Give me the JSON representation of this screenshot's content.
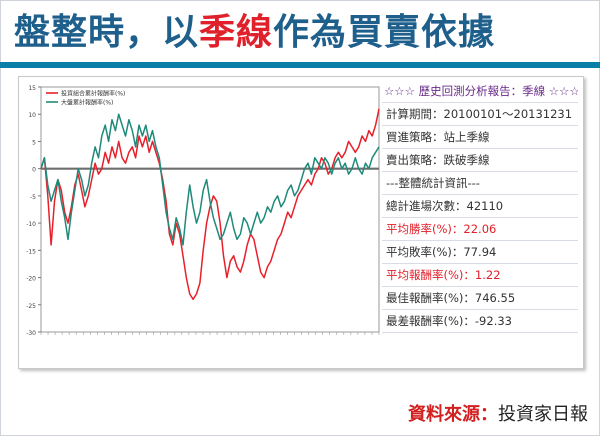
{
  "title": {
    "part1": "盤整時，以",
    "part2": "季線",
    "part3": "作為買賣依據"
  },
  "source": {
    "label": "資料來源：",
    "value": "投資家日報"
  },
  "report": {
    "heading": "☆☆☆ 歷史回測分析報告：季線 ☆☆☆",
    "rows": [
      {
        "key": "計算期間：",
        "value": "20100101～20131231",
        "highlight": false
      },
      {
        "key": "買進策略：",
        "value": "站上季線",
        "highlight": false
      },
      {
        "key": "賣出策略：",
        "value": "跌破季線",
        "highlight": false
      },
      {
        "key": "---整體統計資訊---",
        "value": "",
        "highlight": false
      },
      {
        "key": "總計進場次數：",
        "value": "42110",
        "highlight": false
      },
      {
        "key": "平均勝率(%)：",
        "value": "22.06",
        "highlight": true
      },
      {
        "key": "平均敗率(%)：",
        "value": "77.94",
        "highlight": false
      },
      {
        "key": "平均報酬率(%)：",
        "value": "1.22",
        "highlight": true
      },
      {
        "key": "最佳報酬率(%)：",
        "value": "746.55",
        "highlight": false
      },
      {
        "key": "最差報酬率(%)：",
        "value": "-92.33",
        "highlight": false
      }
    ]
  },
  "chart_data": {
    "type": "line",
    "ylim": [
      -30,
      15
    ],
    "yticks": [
      15,
      10,
      5,
      0,
      -5,
      -10,
      -15,
      -20,
      -25,
      -30
    ],
    "xlim": [
      0,
      100
    ],
    "zero_line": true,
    "legend_position": "top-left",
    "series": [
      {
        "name": "投資組合累計報酬率(%)",
        "color": "#e8202a",
        "points": [
          [
            0,
            0
          ],
          [
            1,
            2
          ],
          [
            2,
            -5
          ],
          [
            3,
            -14
          ],
          [
            4,
            -6
          ],
          [
            5,
            -2
          ],
          [
            6,
            -4
          ],
          [
            7,
            -8
          ],
          [
            8,
            -10
          ],
          [
            9,
            -7
          ],
          [
            10,
            -3
          ],
          [
            11,
            -1
          ],
          [
            12,
            -4
          ],
          [
            13,
            -7
          ],
          [
            14,
            -5
          ],
          [
            15,
            -2
          ],
          [
            16,
            1
          ],
          [
            17,
            -1
          ],
          [
            18,
            0
          ],
          [
            19,
            3
          ],
          [
            20,
            1
          ],
          [
            21,
            4
          ],
          [
            22,
            2
          ],
          [
            23,
            5
          ],
          [
            24,
            2
          ],
          [
            25,
            1
          ],
          [
            26,
            3
          ],
          [
            27,
            4
          ],
          [
            28,
            2
          ],
          [
            29,
            6
          ],
          [
            30,
            4
          ],
          [
            31,
            6
          ],
          [
            32,
            3
          ],
          [
            33,
            5
          ],
          [
            34,
            3
          ],
          [
            35,
            1
          ],
          [
            36,
            -2
          ],
          [
            37,
            -6
          ],
          [
            38,
            -12
          ],
          [
            39,
            -14
          ],
          [
            40,
            -10
          ],
          [
            41,
            -12
          ],
          [
            42,
            -16
          ],
          [
            43,
            -20
          ],
          [
            44,
            -23
          ],
          [
            45,
            -24
          ],
          [
            46,
            -23
          ],
          [
            47,
            -21
          ],
          [
            48,
            -15
          ],
          [
            49,
            -10
          ],
          [
            50,
            -7
          ],
          [
            51,
            -5
          ],
          [
            52,
            -6
          ],
          [
            53,
            -10
          ],
          [
            54,
            -16
          ],
          [
            55,
            -20
          ],
          [
            56,
            -17
          ],
          [
            57,
            -16
          ],
          [
            58,
            -18
          ],
          [
            59,
            -19
          ],
          [
            60,
            -17
          ],
          [
            61,
            -14
          ],
          [
            62,
            -12
          ],
          [
            63,
            -13
          ],
          [
            64,
            -16
          ],
          [
            65,
            -19
          ],
          [
            66,
            -20
          ],
          [
            67,
            -18
          ],
          [
            68,
            -17
          ],
          [
            69,
            -15
          ],
          [
            70,
            -13
          ],
          [
            71,
            -12
          ],
          [
            72,
            -10
          ],
          [
            73,
            -8
          ],
          [
            74,
            -9
          ],
          [
            75,
            -7
          ],
          [
            76,
            -5
          ],
          [
            77,
            -4
          ],
          [
            78,
            -3
          ],
          [
            79,
            -2
          ],
          [
            80,
            -3
          ],
          [
            81,
            -1
          ],
          [
            82,
            0
          ],
          [
            83,
            2
          ],
          [
            84,
            1
          ],
          [
            85,
            -1
          ],
          [
            86,
            0
          ],
          [
            87,
            2
          ],
          [
            88,
            3
          ],
          [
            89,
            2
          ],
          [
            90,
            3
          ],
          [
            91,
            5
          ],
          [
            92,
            4
          ],
          [
            93,
            3
          ],
          [
            94,
            4
          ],
          [
            95,
            6
          ],
          [
            96,
            5
          ],
          [
            97,
            7
          ],
          [
            98,
            6
          ],
          [
            99,
            8
          ],
          [
            100,
            11
          ]
        ]
      },
      {
        "name": "大盤累計報酬率(%)",
        "color": "#1f8a7a",
        "points": [
          [
            0,
            0
          ],
          [
            1,
            2
          ],
          [
            2,
            -3
          ],
          [
            3,
            -6
          ],
          [
            4,
            -4
          ],
          [
            5,
            -2
          ],
          [
            6,
            -6
          ],
          [
            7,
            -9
          ],
          [
            8,
            -13
          ],
          [
            9,
            -8
          ],
          [
            10,
            -4
          ],
          [
            11,
            0
          ],
          [
            12,
            -2
          ],
          [
            13,
            -5
          ],
          [
            14,
            -3
          ],
          [
            15,
            1
          ],
          [
            16,
            4
          ],
          [
            17,
            2
          ],
          [
            18,
            6
          ],
          [
            19,
            8
          ],
          [
            20,
            5
          ],
          [
            21,
            9
          ],
          [
            22,
            7
          ],
          [
            23,
            10
          ],
          [
            24,
            8
          ],
          [
            25,
            6
          ],
          [
            26,
            9
          ],
          [
            27,
            7
          ],
          [
            28,
            4
          ],
          [
            29,
            8
          ],
          [
            30,
            6
          ],
          [
            31,
            8
          ],
          [
            32,
            5
          ],
          [
            33,
            7
          ],
          [
            34,
            4
          ],
          [
            35,
            2
          ],
          [
            36,
            -3
          ],
          [
            37,
            -8
          ],
          [
            38,
            -11
          ],
          [
            39,
            -13
          ],
          [
            40,
            -9
          ],
          [
            41,
            -11
          ],
          [
            42,
            -14
          ],
          [
            43,
            -8
          ],
          [
            44,
            -3
          ],
          [
            45,
            -7
          ],
          [
            46,
            -10
          ],
          [
            47,
            -8
          ],
          [
            48,
            -4
          ],
          [
            49,
            -2
          ],
          [
            50,
            -6
          ],
          [
            51,
            -9
          ],
          [
            52,
            -11
          ],
          [
            53,
            -13
          ],
          [
            54,
            -12
          ],
          [
            55,
            -10
          ],
          [
            56,
            -8
          ],
          [
            57,
            -11
          ],
          [
            58,
            -13
          ],
          [
            59,
            -12
          ],
          [
            60,
            -9
          ],
          [
            61,
            -10
          ],
          [
            62,
            -12
          ],
          [
            63,
            -10
          ],
          [
            64,
            -8
          ],
          [
            65,
            -10
          ],
          [
            66,
            -9
          ],
          [
            67,
            -7
          ],
          [
            68,
            -8
          ],
          [
            69,
            -6
          ],
          [
            70,
            -5
          ],
          [
            71,
            -7
          ],
          [
            72,
            -6
          ],
          [
            73,
            -4
          ],
          [
            74,
            -3
          ],
          [
            75,
            -5
          ],
          [
            76,
            -4
          ],
          [
            77,
            -2
          ],
          [
            78,
            0
          ],
          [
            79,
            1
          ],
          [
            80,
            -1
          ],
          [
            81,
            2
          ],
          [
            82,
            1
          ],
          [
            83,
            0
          ],
          [
            84,
            2
          ],
          [
            85,
            1
          ],
          [
            86,
            -1
          ],
          [
            87,
            1
          ],
          [
            88,
            2
          ],
          [
            89,
            0
          ],
          [
            90,
            1
          ],
          [
            91,
            -1
          ],
          [
            92,
            0
          ],
          [
            93,
            2
          ],
          [
            94,
            0
          ],
          [
            95,
            -1
          ],
          [
            96,
            1
          ],
          [
            97,
            0
          ],
          [
            98,
            2
          ],
          [
            99,
            3
          ],
          [
            100,
            4
          ]
        ]
      }
    ]
  }
}
